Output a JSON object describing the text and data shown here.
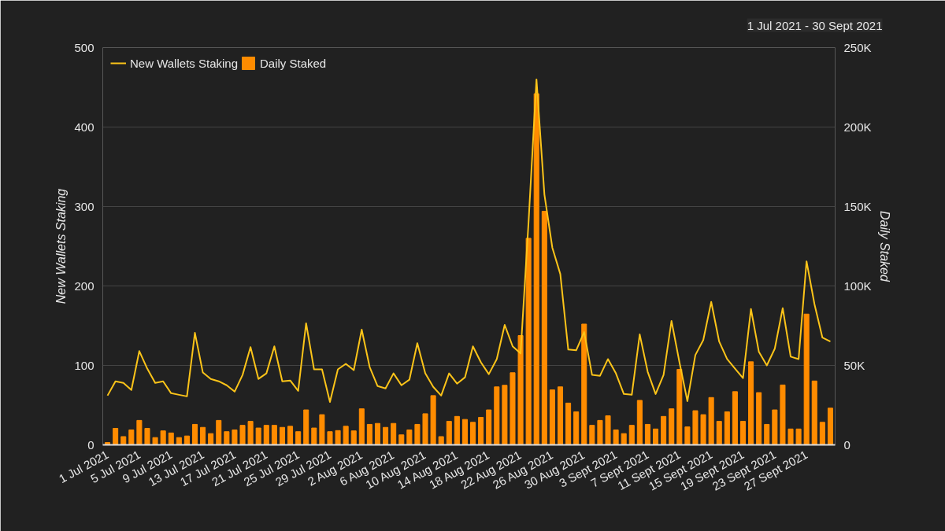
{
  "chart_data": {
    "type": "bar",
    "categories": [
      "1 Jul 2021",
      null,
      null,
      null,
      "5 Jul 2021",
      null,
      null,
      null,
      "9 Jul 2021",
      null,
      null,
      null,
      "13 Jul 2021",
      null,
      null,
      null,
      "17 Jul 2021",
      null,
      null,
      null,
      "21 Jul 2021",
      null,
      null,
      null,
      "25 Jul 2021",
      null,
      null,
      null,
      "29 Jul 2021",
      null,
      null,
      null,
      "2 Aug 2021",
      null,
      null,
      null,
      "6 Aug 2021",
      null,
      null,
      null,
      "10 Aug 2021",
      null,
      null,
      null,
      "14 Aug 2021",
      null,
      null,
      null,
      "18 Aug 2021",
      null,
      null,
      null,
      "22 Aug 2021",
      null,
      null,
      null,
      "26 Aug 2021",
      null,
      null,
      null,
      "30 Aug 2021",
      null,
      null,
      null,
      "3 Sept 2021",
      null,
      null,
      null,
      "7 Sept 2021",
      null,
      null,
      null,
      "11 Sept 2021",
      null,
      null,
      null,
      "15 Sept 2021",
      null,
      null,
      null,
      "19 Sept 2021",
      null,
      null,
      null,
      "23 Sept 2021",
      null,
      null,
      null,
      "27 Sept 2021",
      null,
      null,
      null
    ],
    "series": [
      {
        "name": "New Wallets Staking",
        "type": "line",
        "color": "#fcc419",
        "values": [
          62,
          80,
          78,
          69,
          118,
          96,
          78,
          80,
          65,
          63,
          61,
          141,
          91,
          83,
          80,
          75,
          67,
          88,
          123,
          83,
          90,
          124,
          80,
          81,
          68,
          153,
          95,
          95,
          54,
          95,
          102,
          94,
          145,
          98,
          74,
          71,
          90,
          75,
          82,
          128,
          90,
          73,
          62,
          90,
          77,
          85,
          124,
          104,
          89,
          108,
          151,
          124,
          115,
          280,
          460,
          315,
          248,
          215,
          120,
          119,
          142,
          88,
          87,
          108,
          90,
          64,
          63,
          139,
          92,
          64,
          88,
          156,
          104,
          55,
          113,
          132,
          180,
          130,
          108,
          96,
          84,
          171,
          117,
          100,
          121,
          172,
          111,
          108,
          231,
          177,
          135,
          130
        ]
      },
      {
        "name": "Daily Staked",
        "axis": "y2",
        "color": "#ff8c00",
        "values": [
          1500,
          10400,
          5200,
          9400,
          15400,
          10400,
          4600,
          8800,
          7500,
          4600,
          5600,
          12900,
          11000,
          7100,
          15400,
          8300,
          9400,
          12300,
          14800,
          10600,
          12300,
          12300,
          11000,
          11700,
          8300,
          22000,
          10600,
          19000,
          8300,
          9000,
          11700,
          8800,
          22700,
          12900,
          13500,
          11000,
          13500,
          6300,
          9400,
          12900,
          19600,
          31000,
          5200,
          14800,
          17900,
          16000,
          14200,
          17300,
          22000,
          36500,
          37500,
          45400,
          68800,
          130000,
          221000,
          147000,
          34600,
          36500,
          26300,
          20800,
          76000,
          12300,
          15400,
          18300,
          9400,
          7100,
          12300,
          28000,
          12900,
          10000,
          17900,
          22700,
          47500,
          11300,
          21500,
          19000,
          29800,
          14800,
          20800,
          33500,
          14800,
          52300,
          32900,
          12900,
          22000,
          37700,
          10000,
          10000,
          82300,
          40200,
          14200,
          23100
        ]
      }
    ],
    "ylabel": "New Wallets Staking",
    "y2label": "Daily Staked",
    "ylim": [
      0,
      500
    ],
    "yticks": [
      0,
      100,
      200,
      300,
      400,
      500
    ],
    "y2lim": [
      0,
      250000
    ],
    "y2ticks": [
      0,
      {
        "value": 50000,
        "label": "50K"
      },
      {
        "value": 100000,
        "label": "100K"
      },
      {
        "value": 150000,
        "label": "150K"
      },
      {
        "value": 200000,
        "label": "200K"
      },
      {
        "value": 250000,
        "label": "250K"
      }
    ],
    "grid": "y",
    "legend": "top left",
    "annotations": [
      "1 Jul 2021 - 30 Sept 2021"
    ]
  }
}
